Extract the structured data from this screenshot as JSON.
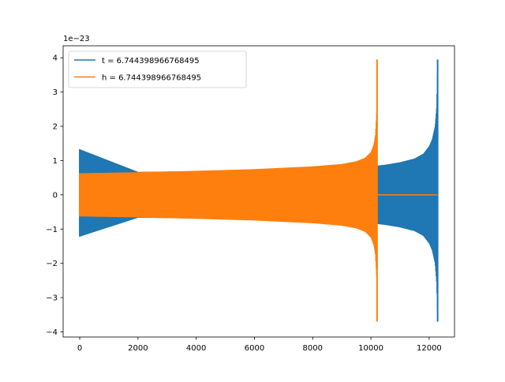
{
  "chart_data": {
    "type": "line",
    "title": "",
    "xlabel": "",
    "ylabel": "",
    "y_offset_label": "1e−23",
    "xlim": [
      -570,
      12870
    ],
    "ylim": [
      -4.15,
      4.35
    ],
    "x_ticks": [
      0,
      2000,
      4000,
      6000,
      8000,
      10000,
      12000
    ],
    "x_tick_labels": [
      "0",
      "2000",
      "4000",
      "6000",
      "8000",
      "10000",
      "12000"
    ],
    "y_ticks": [
      -4,
      -3,
      -2,
      -1,
      0,
      1,
      2,
      3,
      4
    ],
    "y_tick_labels": [
      "−4",
      "−3",
      "−2",
      "−1",
      "0",
      "1",
      "2",
      "3",
      "4"
    ],
    "grid": false,
    "legend_position": "upper-left",
    "series": [
      {
        "name": "t = 6.744398966768495",
        "color": "#1f77b4",
        "style": "dense oscillation envelope",
        "x": [
          0,
          2000,
          4000,
          6000,
          8000,
          9000,
          10000,
          10500,
          11000,
          11500,
          11800,
          12000,
          12100,
          12200,
          12250,
          12290
        ],
        "upper": [
          1.33,
          0.67,
          0.69,
          0.71,
          0.74,
          0.76,
          0.83,
          0.88,
          0.95,
          1.06,
          1.2,
          1.42,
          1.62,
          2.0,
          2.55,
          3.95
        ],
        "lower": [
          -1.22,
          -0.67,
          -0.69,
          -0.71,
          -0.74,
          -0.76,
          -0.83,
          -0.88,
          -0.95,
          -1.06,
          -1.2,
          -1.42,
          -1.62,
          -2.0,
          -2.55,
          -3.7
        ],
        "end_value": 0
      },
      {
        "name": "h = 6.744398966768495",
        "color": "#ff7f0e",
        "style": "dense oscillation envelope",
        "x": [
          0,
          2000,
          4000,
          6000,
          8000,
          9000,
          9500,
          9800,
          10000,
          10100,
          10150,
          10190,
          10210
        ],
        "upper": [
          0.63,
          0.66,
          0.7,
          0.75,
          0.83,
          0.9,
          0.98,
          1.08,
          1.25,
          1.48,
          1.75,
          2.4,
          3.95
        ],
        "lower": [
          -0.63,
          -0.66,
          -0.7,
          -0.75,
          -0.83,
          -0.9,
          -0.98,
          -1.08,
          -1.25,
          -1.48,
          -1.75,
          -2.4,
          -3.7
        ],
        "flat_after": [
          10230,
          12290
        ],
        "flat_value": 0
      }
    ]
  }
}
